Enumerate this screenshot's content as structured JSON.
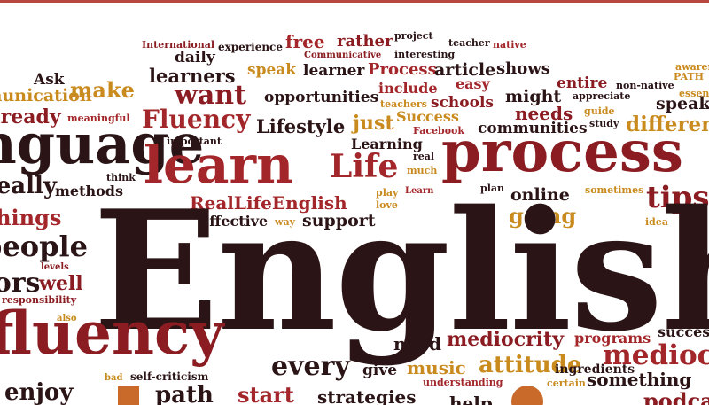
{
  "colors": {
    "dark": "#2b1416",
    "maroon": "#8a1c22",
    "red": "#a3262a",
    "gold": "#c98a1e",
    "brown": "#5a3a2c",
    "accent_bar": "#b8473d"
  },
  "words": [
    {
      "text": "International",
      "color": "maroon"
    },
    {
      "text": "experience",
      "color": "dark"
    },
    {
      "text": "free",
      "color": "red"
    },
    {
      "text": "rather",
      "color": "maroon"
    },
    {
      "text": "project",
      "color": "dark"
    },
    {
      "text": "teacher",
      "color": "dark"
    },
    {
      "text": "native",
      "color": "red"
    },
    {
      "text": "Communicative",
      "color": "maroon"
    },
    {
      "text": "interesting",
      "color": "dark"
    },
    {
      "text": "daily",
      "color": "dark"
    },
    {
      "text": "awareness",
      "color": "gold"
    },
    {
      "text": "Ask",
      "color": "dark"
    },
    {
      "text": "learners",
      "color": "dark"
    },
    {
      "text": "speak",
      "color": "gold"
    },
    {
      "text": "learner",
      "color": "dark"
    },
    {
      "text": "Process",
      "color": "red"
    },
    {
      "text": "article",
      "color": "dark"
    },
    {
      "text": "shows",
      "color": "dark"
    },
    {
      "text": "PATH",
      "color": "gold"
    },
    {
      "text": "communication",
      "color": "gold"
    },
    {
      "text": "make",
      "color": "gold"
    },
    {
      "text": "easy",
      "color": "red"
    },
    {
      "text": "entire",
      "color": "maroon"
    },
    {
      "text": "non-native",
      "color": "dark"
    },
    {
      "text": "include",
      "color": "red"
    },
    {
      "text": "might",
      "color": "dark"
    },
    {
      "text": "essential",
      "color": "gold"
    },
    {
      "text": "want",
      "color": "maroon"
    },
    {
      "text": "opportunities",
      "color": "dark"
    },
    {
      "text": "appreciate",
      "color": "dark"
    },
    {
      "text": "teachers",
      "color": "gold"
    },
    {
      "text": "schools",
      "color": "maroon"
    },
    {
      "text": "speaking",
      "color": "dark"
    },
    {
      "text": "already",
      "color": "maroon"
    },
    {
      "text": "meaningful",
      "color": "red"
    },
    {
      "text": "guide",
      "color": "gold"
    },
    {
      "text": "Fluency",
      "color": "red"
    },
    {
      "text": "Lifestyle",
      "color": "dark"
    },
    {
      "text": "just",
      "color": "gold"
    },
    {
      "text": "Success",
      "color": "gold"
    },
    {
      "text": "needs",
      "color": "maroon"
    },
    {
      "text": "study",
      "color": "dark"
    },
    {
      "text": "different",
      "color": "gold"
    },
    {
      "text": "Facebook",
      "color": "red"
    },
    {
      "text": "communities",
      "color": "dark"
    },
    {
      "text": "important",
      "color": "dark"
    },
    {
      "text": "Learning",
      "color": "dark"
    },
    {
      "text": "language",
      "color": "dark"
    },
    {
      "text": "real",
      "color": "dark"
    },
    {
      "text": "learn",
      "color": "red"
    },
    {
      "text": "Life",
      "color": "red"
    },
    {
      "text": "much",
      "color": "gold"
    },
    {
      "text": "process",
      "color": "maroon"
    },
    {
      "text": "think",
      "color": "dark"
    },
    {
      "text": "plan",
      "color": "dark"
    },
    {
      "text": "really",
      "color": "dark"
    },
    {
      "text": "methods",
      "color": "dark"
    },
    {
      "text": "play",
      "color": "gold"
    },
    {
      "text": "Learn",
      "color": "red"
    },
    {
      "text": "online",
      "color": "dark"
    },
    {
      "text": "sometimes",
      "color": "gold"
    },
    {
      "text": "tips",
      "color": "maroon"
    },
    {
      "text": "RealLifeEnglish",
      "color": "red"
    },
    {
      "text": "love",
      "color": "gold"
    },
    {
      "text": "things",
      "color": "red"
    },
    {
      "text": "going",
      "color": "gold"
    },
    {
      "text": "Effective",
      "color": "dark"
    },
    {
      "text": "way",
      "color": "gold"
    },
    {
      "text": "support",
      "color": "dark"
    },
    {
      "text": "idea",
      "color": "gold"
    },
    {
      "text": "English",
      "color": "dark"
    },
    {
      "text": "people",
      "color": "dark"
    },
    {
      "text": "levels",
      "color": "maroon"
    },
    {
      "text": "well",
      "color": "maroon"
    },
    {
      "text": "errors",
      "color": "dark"
    },
    {
      "text": "responsibility",
      "color": "maroon"
    },
    {
      "text": "fluency",
      "color": "maroon"
    },
    {
      "text": "also",
      "color": "gold"
    },
    {
      "text": "need",
      "color": "dark"
    },
    {
      "text": "mediocrity",
      "color": "maroon"
    },
    {
      "text": "programs",
      "color": "red"
    },
    {
      "text": "success",
      "color": "dark"
    },
    {
      "text": "mediocre",
      "color": "red"
    },
    {
      "text": "self-criticism",
      "color": "dark"
    },
    {
      "text": "every",
      "color": "dark"
    },
    {
      "text": "give",
      "color": "dark"
    },
    {
      "text": "music",
      "color": "gold"
    },
    {
      "text": "attitude",
      "color": "gold"
    },
    {
      "text": "ingredients",
      "color": "dark"
    },
    {
      "text": "something",
      "color": "dark"
    },
    {
      "text": "bad",
      "color": "gold"
    },
    {
      "text": "certain",
      "color": "gold"
    },
    {
      "text": "understanding",
      "color": "red"
    },
    {
      "text": "enjoy",
      "color": "dark"
    },
    {
      "text": "path",
      "color": "dark"
    },
    {
      "text": "start",
      "color": "red"
    },
    {
      "text": "strategies",
      "color": "dark"
    },
    {
      "text": "help",
      "color": "dark"
    },
    {
      "text": "podcast",
      "color": "maroon"
    }
  ]
}
